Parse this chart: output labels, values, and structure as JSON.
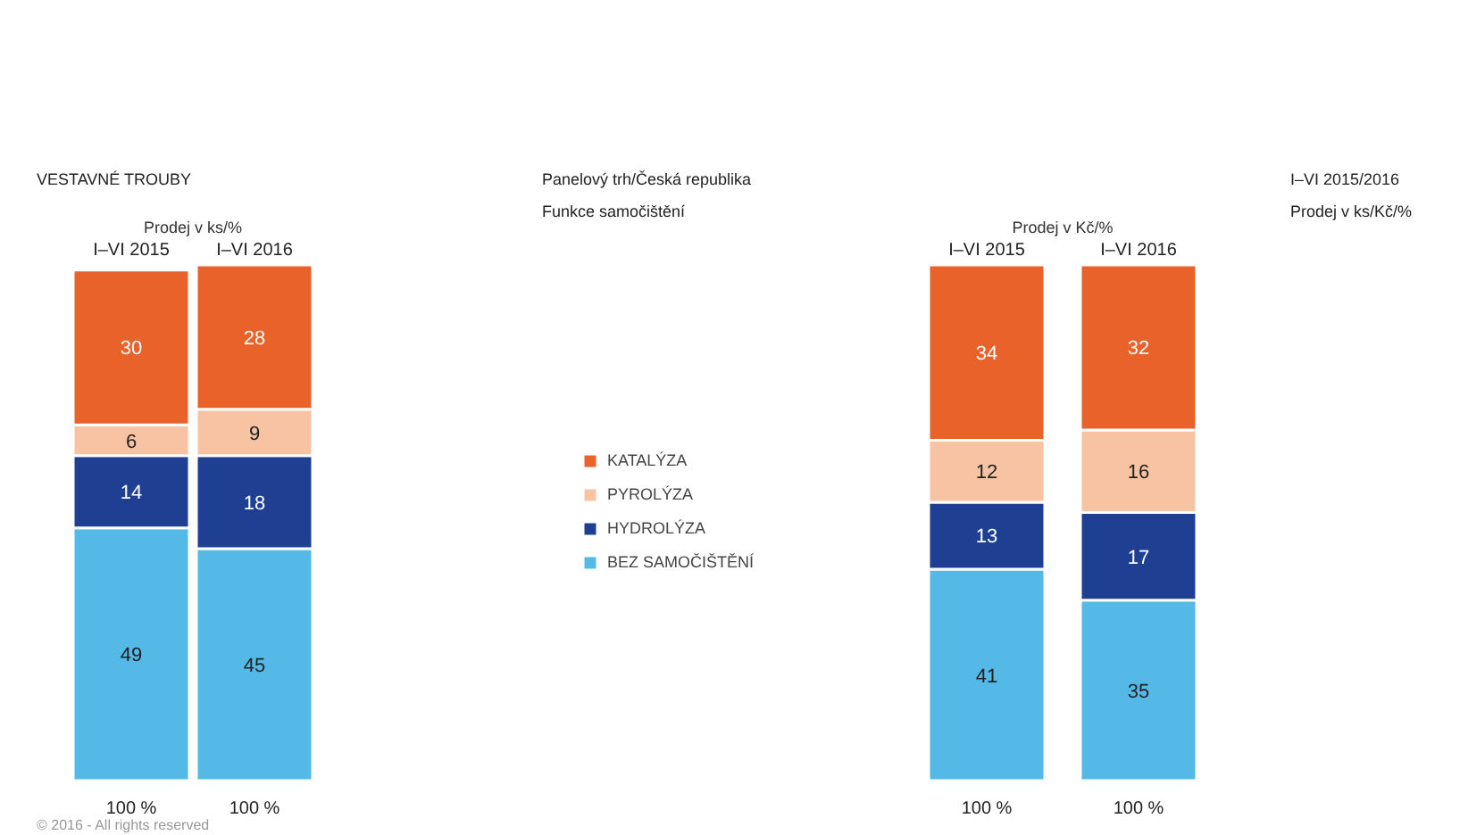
{
  "chart_data": [
    {
      "type": "bar",
      "stacked": true,
      "data_labels": true,
      "legend": "right",
      "title": "Prodej v ks/%",
      "categories": [
        "I–VI 2015",
        "I–VI 2016"
      ],
      "totals": [
        "100 %",
        "100 %"
      ],
      "annotations": [
        "VESTAVNÉ TROUBY",
        "Panelový trh/Česká republika",
        "Funkce samočištění",
        "© 2016 - All rights reserved"
      ],
      "series": [
        {
          "name": "BEZ SAMOČIŠTĚNÍ",
          "color": "#55b9e8",
          "values": [
            49,
            45
          ]
        },
        {
          "name": "HYDROLÝZA",
          "color": "#1f3f93",
          "values": [
            14,
            18
          ]
        },
        {
          "name": "PYROLÝZA",
          "color": "#f7c3a3",
          "values": [
            6,
            9
          ]
        },
        {
          "name": "KATALÝZA",
          "color": "#e8622a",
          "values": [
            30,
            28
          ]
        }
      ]
    },
    {
      "type": "bar",
      "stacked": true,
      "data_labels": true,
      "title": "Prodej v Kč/%",
      "categories": [
        "I–VI 2015",
        "I–VI 2016"
      ],
      "totals": [
        "100 %",
        "100 %"
      ],
      "annotations": [
        "I–VI 2015/2016",
        "Prodej v ks/Kč/%"
      ],
      "series": [
        {
          "color": "#55b9e8",
          "values": [
            41,
            35
          ]
        },
        {
          "color": "#1f3f93",
          "values": [
            13,
            17
          ]
        },
        {
          "color": "#f7c3a3",
          "values": [
            12,
            16
          ]
        },
        {
          "color": "#e8622a",
          "values": [
            34,
            32
          ]
        }
      ]
    }
  ]
}
